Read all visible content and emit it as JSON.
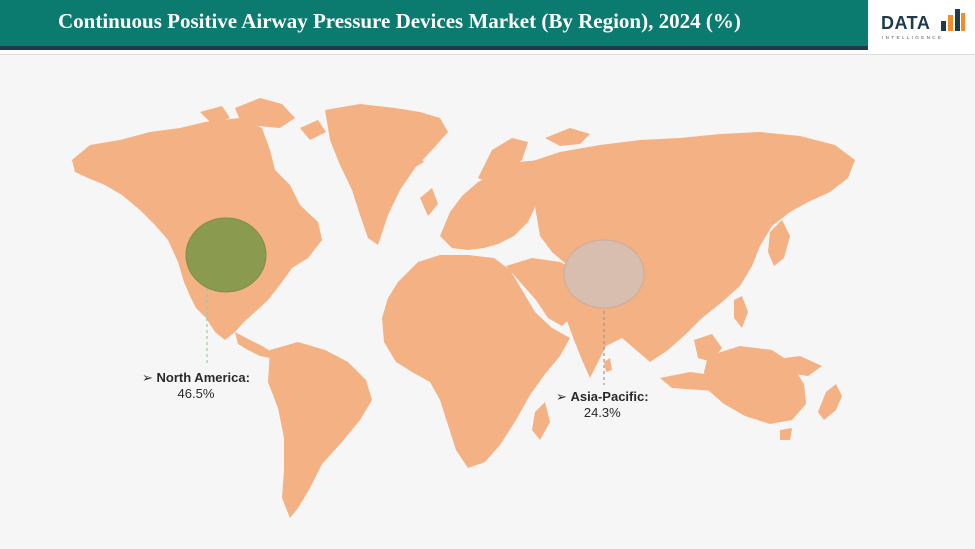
{
  "header": {
    "title": "Continuous Positive Airway Pressure Devices Market (By Region), 2024 (%)"
  },
  "logo": {
    "word": "DATA",
    "sub": "INTELLIGENCE"
  },
  "colors": {
    "header_bg": "#0b7a6f",
    "land": "#f4b183",
    "north_america_bubble": "#8a9a4e",
    "asia_pacific_bubble": "#d8beae"
  },
  "chart_data": {
    "type": "bubble-map",
    "title": "Continuous Positive Airway Pressure Devices Market (By Region), 2024 (%)",
    "regions": [
      {
        "name": "North America:",
        "value": "46.5%",
        "share": 46.5,
        "color": "#8a9a4e"
      },
      {
        "name": "Asia-Pacific:",
        "value": "24.3%",
        "share": 24.3,
        "color": "#d8beae"
      }
    ]
  }
}
